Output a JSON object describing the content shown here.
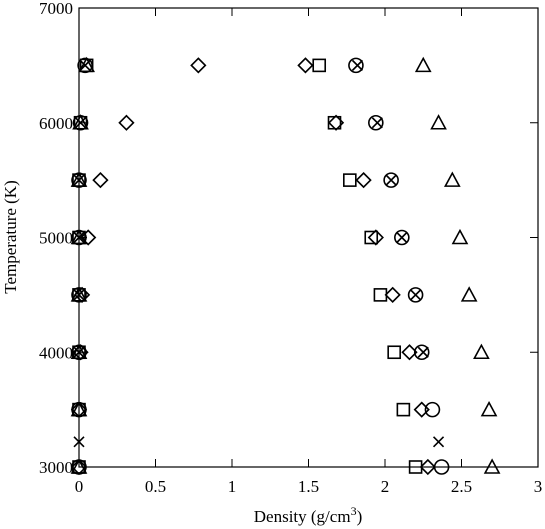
{
  "chart_data": {
    "type": "scatter",
    "xlabel": [
      "Density (g/cm",
      "3",
      ")"
    ],
    "ylabel": "Temperature (K)",
    "xlim": [
      0,
      3
    ],
    "ylim": [
      3000,
      7000
    ],
    "xticks": [
      0,
      0.5,
      1,
      1.5,
      2,
      2.5,
      3
    ],
    "yticks": [
      3000,
      4000,
      5000,
      6000,
      7000
    ],
    "series": [
      {
        "marker": "square",
        "color": "#000000",
        "x": [
          0.05,
          1.57,
          0.01,
          1.67,
          0,
          1.77,
          0,
          1.91,
          0,
          1.97,
          0,
          2.06,
          0,
          2.12,
          0,
          2.2
        ],
        "values": [
          6500,
          6500,
          6000,
          6000,
          5500,
          5500,
          5000,
          5000,
          4500,
          4500,
          4000,
          4000,
          3500,
          3500,
          3000,
          3000
        ]
      },
      {
        "marker": "diamond",
        "color": "#000000",
        "x": [
          0.78,
          1.48,
          0.31,
          1.68,
          0.14,
          1.86,
          0.06,
          1.94,
          0.02,
          2.05,
          0.01,
          2.16,
          0,
          2.24,
          0,
          2.28
        ],
        "values": [
          6500,
          6500,
          6000,
          6000,
          5500,
          5500,
          5000,
          5000,
          4500,
          4500,
          4000,
          4000,
          3500,
          3500,
          3000,
          3000
        ]
      },
      {
        "marker": "circle",
        "color": "#000000",
        "x": [
          0.04,
          1.81,
          0.01,
          1.94,
          0,
          2.04,
          0,
          2.11,
          0,
          2.2,
          0,
          2.24,
          0,
          2.31,
          0,
          2.37
        ],
        "values": [
          6500,
          6500,
          6000,
          6000,
          5500,
          5500,
          5000,
          5000,
          4500,
          4500,
          4000,
          4000,
          3500,
          3500,
          3000,
          3000
        ]
      },
      {
        "marker": "triangle",
        "color": "#000000",
        "x": [
          0.05,
          2.25,
          0.01,
          2.35,
          0,
          2.44,
          0,
          2.49,
          0,
          2.55,
          0,
          2.63,
          0,
          2.68,
          0,
          2.7
        ],
        "values": [
          6500,
          6500,
          6000,
          6000,
          5500,
          5500,
          5000,
          5000,
          4500,
          4500,
          4000,
          4000,
          3500,
          3500,
          3000,
          3000
        ]
      },
      {
        "marker": "cross",
        "color": "#000000",
        "x": [
          0.04,
          1.82,
          0.01,
          1.95,
          0,
          2.04,
          0,
          2.11,
          0,
          2.2,
          0,
          2.25,
          0,
          2.35
        ],
        "values": [
          6500,
          6500,
          6000,
          6000,
          5500,
          5500,
          5000,
          5000,
          4500,
          4500,
          4000,
          4000,
          3220,
          3220
        ]
      }
    ]
  }
}
